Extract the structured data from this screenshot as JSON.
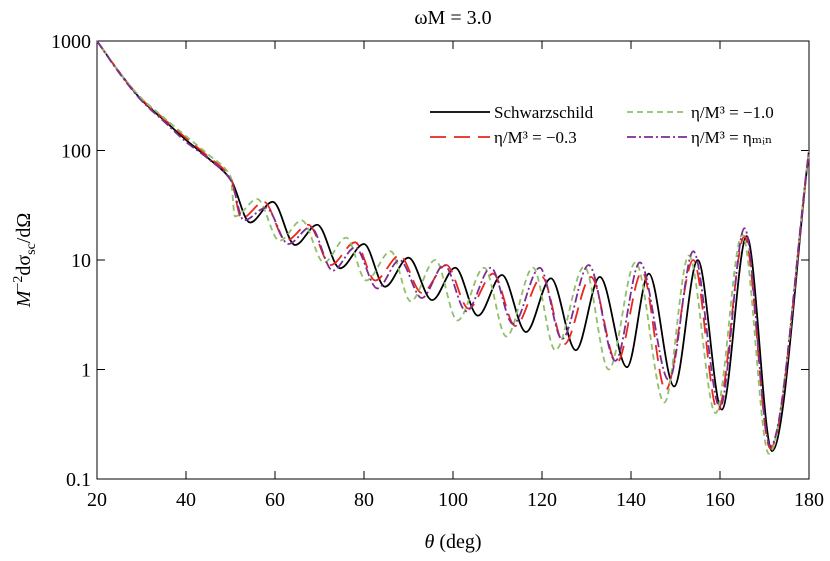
{
  "chart_data": {
    "type": "line",
    "title": "ωM = 3.0",
    "x_label": [
      "θ",
      " (deg)"
    ],
    "y_label": [
      "M",
      "−2",
      "dσ",
      "sc",
      "/dΩ"
    ],
    "xlim": [
      20,
      180
    ],
    "xticks": [
      20,
      40,
      60,
      80,
      100,
      120,
      140,
      160,
      180
    ],
    "ylim": [
      0.1,
      1000
    ],
    "yticks": [
      0.1,
      1,
      10,
      100,
      1000
    ],
    "y_scale": "log",
    "legend": "top-right",
    "series": [
      {
        "name": "Schwarzschild",
        "color": "#000000",
        "dash": "solid",
        "x": [
          20,
          25,
          30,
          35,
          40,
          45,
          50,
          54.4,
          59.5,
          64.5,
          69.5,
          74.6,
          80,
          84.7,
          90,
          95.3,
          100.5,
          105.6,
          111,
          116.4,
          122,
          127.6,
          133,
          139.1,
          144,
          149.7,
          155,
          160.4,
          166,
          171.7,
          180
        ],
        "values": [
          1000,
          520,
          290,
          190,
          125,
          85,
          55,
          22,
          34,
          13.7,
          21,
          8.4,
          14,
          5.7,
          10.5,
          4.3,
          8.5,
          3.1,
          7.3,
          2.2,
          6.8,
          1.5,
          7,
          1.05,
          7.5,
          0.7,
          10,
          0.43,
          16.5,
          0.18,
          100
        ]
      },
      {
        "name": "η/M³ = −0.3",
        "color": "#e8281e",
        "dash": "long",
        "x": [
          20,
          25,
          30,
          35,
          40,
          45,
          50,
          52.5,
          57.5,
          62.5,
          67.5,
          72.5,
          78,
          82.5,
          88,
          93,
          98.5,
          103.5,
          109,
          114,
          120,
          125,
          131,
          136.8,
          142.5,
          147.8,
          154,
          159.5,
          165.5,
          171.3,
          180
        ],
        "values": [
          1000,
          520,
          295,
          195,
          130,
          88,
          57,
          24,
          34,
          15,
          21,
          9,
          14.5,
          6.5,
          11,
          5,
          9,
          3.6,
          7.5,
          2.5,
          7,
          1.7,
          7,
          1.15,
          7.8,
          0.65,
          10,
          0.42,
          16.5,
          0.19,
          95
        ]
      },
      {
        "name": "η/M³ = −1.0",
        "color": "#8fc06a",
        "dash": "short",
        "x": [
          20,
          25,
          30,
          35,
          40,
          45,
          50,
          51,
          56,
          61,
          66,
          71,
          76,
          80.5,
          86,
          90.5,
          96,
          101,
          107,
          112,
          118,
          123,
          129.5,
          135,
          141,
          147.5,
          153,
          159,
          165,
          171,
          180
        ],
        "values": [
          1000,
          520,
          300,
          200,
          135,
          92,
          58,
          25,
          36,
          15,
          23,
          9.5,
          16,
          6.5,
          12,
          4.2,
          10,
          2.8,
          8.5,
          2,
          8.5,
          1.5,
          8.7,
          1,
          9.5,
          0.5,
          11,
          0.4,
          17,
          0.17,
          100
        ]
      },
      {
        "name": "η/M³ = ηₘᵢₙ",
        "color": "#7b2d91",
        "dash": "dashdot",
        "x": [
          20,
          25,
          30,
          35,
          40,
          45,
          50,
          53,
          58,
          63,
          68,
          73,
          78,
          83,
          88,
          93,
          98,
          103,
          108.5,
          113.5,
          119.5,
          124.5,
          130.5,
          136.5,
          142,
          148.5,
          154,
          160,
          165.5,
          171.3,
          180
        ],
        "values": [
          1000,
          510,
          285,
          185,
          120,
          84,
          54,
          23,
          30,
          14,
          20,
          8,
          13,
          5.5,
          10,
          4.5,
          9,
          3.4,
          8.5,
          2.6,
          8.5,
          1.9,
          9,
          1.2,
          9.5,
          0.8,
          12,
          0.45,
          19.5,
          0.2,
          100
        ]
      }
    ]
  }
}
